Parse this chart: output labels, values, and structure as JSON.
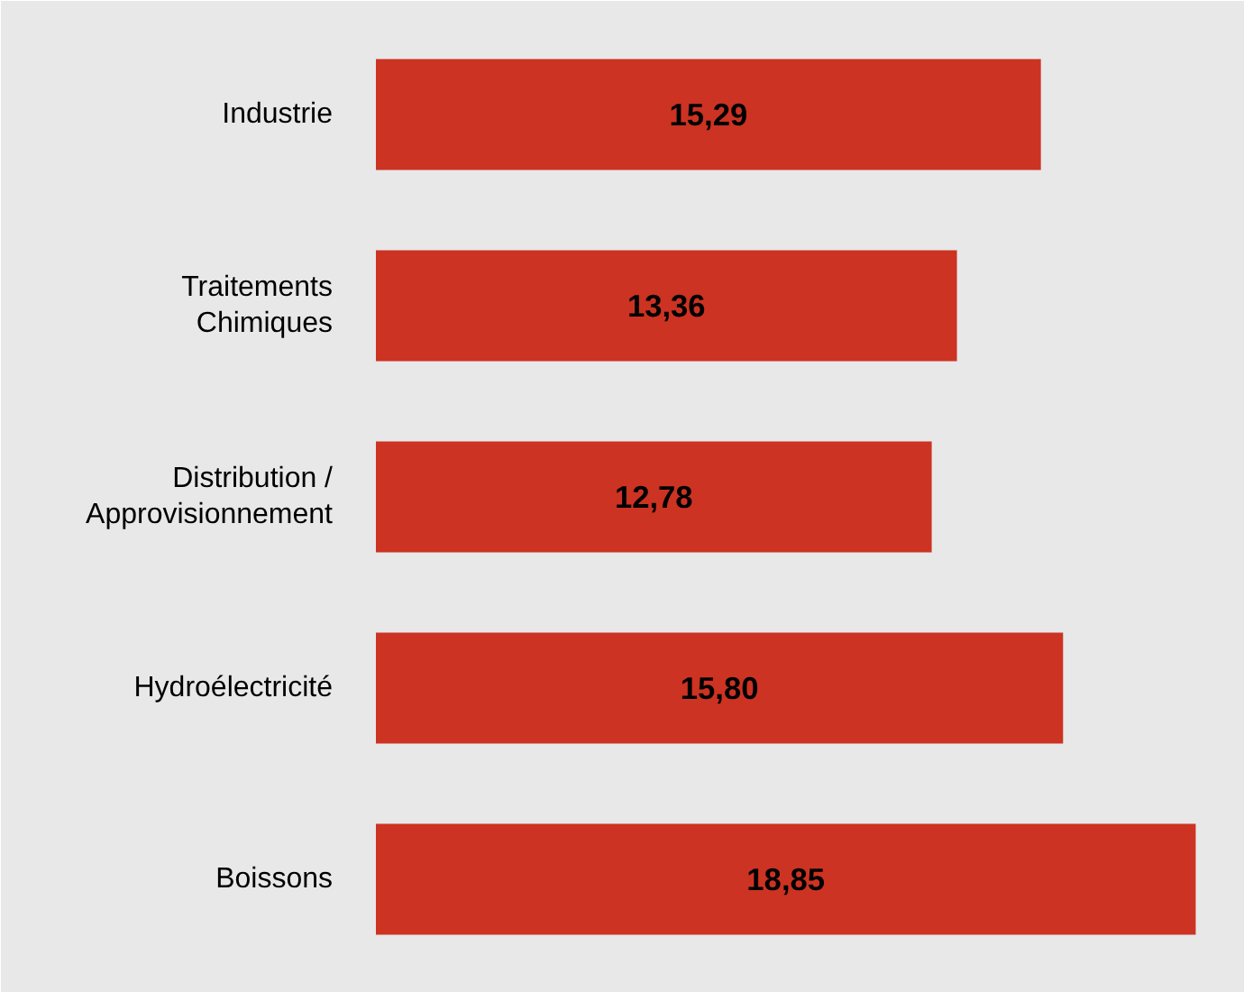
{
  "chart_data": {
    "type": "bar",
    "orientation": "horizontal",
    "categories": [
      "Industrie",
      "Traitements\nChimiques",
      "Distribution /\nApprovisionnement",
      "Hydroélectricité",
      "Boissons"
    ],
    "values": [
      15.29,
      13.36,
      12.78,
      15.8,
      18.85
    ],
    "value_labels": [
      "15,29",
      "13,36",
      "12,78",
      "15,80",
      "18,85"
    ],
    "color": "#cc3322"
  }
}
